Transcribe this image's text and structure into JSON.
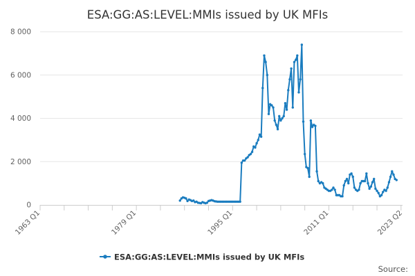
{
  "chart_data": {
    "type": "line",
    "title": "ESA:GG:AS:LEVEL:MMIs issued by UK MFIs",
    "xlabel": "",
    "ylabel": "",
    "x_ticks": [
      "1963 Q1",
      "1979 Q1",
      "1995 Q1",
      "2011 Q1",
      "2023 Q2"
    ],
    "y_ticks": [
      "0",
      "2 000",
      "4 000",
      "6 000",
      "8 000"
    ],
    "xlim": [
      1963.0,
      2023.25
    ],
    "ylim": [
      0,
      8000
    ],
    "grid": "horizontal",
    "legend_position": "bottom",
    "series_color": "#1a7cbf",
    "source_label": "Source:",
    "series": [
      {
        "name": "ESA:GG:AS:LEVEL:MMIs issued by UK MFIs",
        "points": [
          [
            1986.25,
            200
          ],
          [
            1986.5,
            300
          ],
          [
            1986.75,
            350
          ],
          [
            1987.0,
            330
          ],
          [
            1987.25,
            300
          ],
          [
            1987.5,
            180
          ],
          [
            1987.75,
            250
          ],
          [
            1988.0,
            220
          ],
          [
            1988.25,
            180
          ],
          [
            1988.5,
            200
          ],
          [
            1988.75,
            130
          ],
          [
            1989.0,
            150
          ],
          [
            1989.25,
            100
          ],
          [
            1989.5,
            90
          ],
          [
            1989.75,
            80
          ],
          [
            1990.0,
            130
          ],
          [
            1990.25,
            100
          ],
          [
            1990.5,
            80
          ],
          [
            1990.75,
            100
          ],
          [
            1991.0,
            180
          ],
          [
            1991.25,
            200
          ],
          [
            1991.5,
            220
          ],
          [
            1991.75,
            200
          ],
          [
            1992.0,
            170
          ],
          [
            1992.25,
            160
          ],
          [
            1992.5,
            150
          ],
          [
            1992.75,
            150
          ],
          [
            1993.0,
            150
          ],
          [
            1993.25,
            150
          ],
          [
            1993.5,
            150
          ],
          [
            1993.75,
            150
          ],
          [
            1994.0,
            150
          ],
          [
            1994.25,
            150
          ],
          [
            1994.5,
            150
          ],
          [
            1994.75,
            150
          ],
          [
            1995.0,
            150
          ],
          [
            1995.25,
            150
          ],
          [
            1995.5,
            150
          ],
          [
            1995.75,
            150
          ],
          [
            1996.0,
            150
          ],
          [
            1996.25,
            150
          ],
          [
            1996.5,
            1950
          ],
          [
            1996.75,
            2050
          ],
          [
            1997.0,
            2050
          ],
          [
            1997.25,
            2150
          ],
          [
            1997.5,
            2200
          ],
          [
            1997.75,
            2300
          ],
          [
            1998.0,
            2350
          ],
          [
            1998.25,
            2450
          ],
          [
            1998.5,
            2700
          ],
          [
            1998.75,
            2650
          ],
          [
            1999.0,
            2850
          ],
          [
            1999.25,
            3000
          ],
          [
            1999.5,
            3250
          ],
          [
            1999.75,
            3150
          ],
          [
            2000.0,
            5400
          ],
          [
            2000.25,
            6900
          ],
          [
            2000.5,
            6600
          ],
          [
            2000.75,
            6000
          ],
          [
            2001.0,
            4200
          ],
          [
            2001.25,
            4650
          ],
          [
            2001.5,
            4600
          ],
          [
            2001.75,
            4500
          ],
          [
            2002.0,
            3900
          ],
          [
            2002.25,
            3700
          ],
          [
            2002.5,
            3500
          ],
          [
            2002.75,
            4100
          ],
          [
            2003.0,
            3900
          ],
          [
            2003.25,
            4000
          ],
          [
            2003.5,
            4100
          ],
          [
            2003.75,
            4700
          ],
          [
            2004.0,
            4400
          ],
          [
            2004.25,
            5300
          ],
          [
            2004.5,
            5800
          ],
          [
            2004.75,
            6300
          ],
          [
            2005.0,
            4500
          ],
          [
            2005.25,
            6600
          ],
          [
            2005.5,
            6700
          ],
          [
            2005.75,
            6900
          ],
          [
            2006.0,
            5200
          ],
          [
            2006.25,
            5800
          ],
          [
            2006.5,
            7400
          ],
          [
            2006.75,
            3850
          ],
          [
            2007.0,
            2350
          ],
          [
            2007.25,
            1750
          ],
          [
            2007.5,
            1700
          ],
          [
            2007.75,
            1300
          ],
          [
            2008.0,
            3900
          ],
          [
            2008.25,
            3600
          ],
          [
            2008.5,
            3700
          ],
          [
            2008.75,
            3650
          ],
          [
            2009.0,
            1550
          ],
          [
            2009.25,
            1100
          ],
          [
            2009.5,
            1000
          ],
          [
            2009.75,
            1050
          ],
          [
            2010.0,
            1000
          ],
          [
            2010.25,
            800
          ],
          [
            2010.5,
            750
          ],
          [
            2010.75,
            700
          ],
          [
            2011.0,
            650
          ],
          [
            2011.25,
            650
          ],
          [
            2011.5,
            700
          ],
          [
            2011.75,
            800
          ],
          [
            2012.0,
            700
          ],
          [
            2012.25,
            450
          ],
          [
            2012.5,
            450
          ],
          [
            2012.75,
            450
          ],
          [
            2013.0,
            400
          ],
          [
            2013.25,
            400
          ],
          [
            2013.5,
            900
          ],
          [
            2013.75,
            1100
          ],
          [
            2014.0,
            1200
          ],
          [
            2014.25,
            1000
          ],
          [
            2014.5,
            1400
          ],
          [
            2014.75,
            1450
          ],
          [
            2015.0,
            1300
          ],
          [
            2015.25,
            800
          ],
          [
            2015.5,
            700
          ],
          [
            2015.75,
            650
          ],
          [
            2016.0,
            700
          ],
          [
            2016.25,
            1000
          ],
          [
            2016.5,
            1100
          ],
          [
            2016.75,
            1100
          ],
          [
            2017.0,
            1100
          ],
          [
            2017.25,
            1450
          ],
          [
            2017.5,
            1000
          ],
          [
            2017.75,
            750
          ],
          [
            2018.0,
            850
          ],
          [
            2018.25,
            1050
          ],
          [
            2018.5,
            1200
          ],
          [
            2018.75,
            750
          ],
          [
            2019.0,
            650
          ],
          [
            2019.25,
            550
          ],
          [
            2019.5,
            400
          ],
          [
            2019.75,
            450
          ],
          [
            2020.0,
            600
          ],
          [
            2020.25,
            700
          ],
          [
            2020.5,
            650
          ],
          [
            2020.75,
            800
          ],
          [
            2021.0,
            1050
          ],
          [
            2021.25,
            1300
          ],
          [
            2021.5,
            1550
          ],
          [
            2021.75,
            1400
          ],
          [
            2022.0,
            1200
          ],
          [
            2022.25,
            1150
          ]
        ]
      }
    ]
  }
}
